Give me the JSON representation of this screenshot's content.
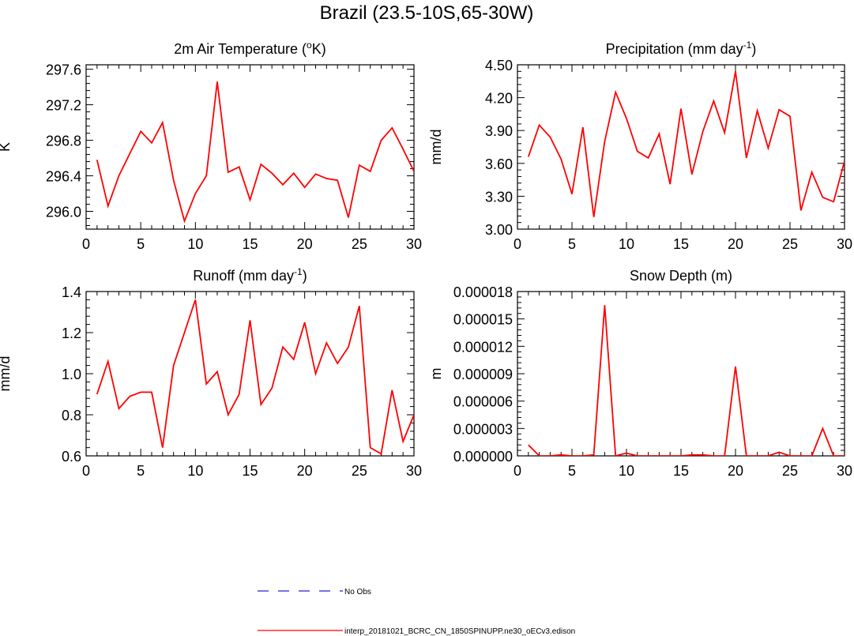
{
  "page_title": "Brazil (23.5-10S,65-30W)",
  "colors": {
    "model_line": "#ff0000",
    "obs_line": "#2222dd",
    "axis": "#000000"
  },
  "legend": {
    "entries": [
      {
        "label": "No Obs",
        "style": "dashed",
        "color": "#2222dd"
      },
      {
        "label": "interp_20181021_BCRC_CN_1850SPINUPP.ne30_oECv3.edison",
        "style": "solid",
        "color": "#ff0000"
      }
    ]
  },
  "chart_data": [
    {
      "id": "temp",
      "type": "line",
      "title": "2m Air Temperature (",
      "title_sup": "o",
      "title_tail": "K)",
      "ylabel": "K",
      "xlim": [
        0,
        30
      ],
      "ylim": [
        295.8,
        297.65
      ],
      "xticks": [
        0,
        5,
        10,
        15,
        20,
        25,
        30
      ],
      "yticks": [
        296.0,
        296.4,
        296.8,
        297.2,
        297.6
      ],
      "ytick_labels": [
        "296.0",
        "296.4",
        "296.8",
        "297.2",
        "297.6"
      ],
      "x": [
        1,
        2,
        3,
        4,
        5,
        6,
        7,
        8,
        9,
        10,
        11,
        12,
        13,
        14,
        15,
        16,
        17,
        18,
        19,
        20,
        21,
        22,
        23,
        24,
        25,
        26,
        27,
        28,
        29,
        30
      ],
      "values": [
        296.58,
        296.06,
        296.4,
        296.65,
        296.9,
        296.77,
        297.0,
        296.35,
        295.89,
        296.2,
        296.4,
        297.46,
        296.44,
        296.5,
        296.13,
        296.53,
        296.43,
        296.3,
        296.43,
        296.27,
        296.42,
        296.37,
        296.35,
        295.93,
        296.52,
        296.45,
        296.8,
        296.94,
        296.7,
        296.45
      ]
    },
    {
      "id": "precip",
      "type": "line",
      "title": "Precipitation (mm day",
      "title_sup": "-1",
      "title_tail": ")",
      "ylabel": "mm/d",
      "xlim": [
        0,
        30
      ],
      "ylim": [
        3.0,
        4.5
      ],
      "xticks": [
        0,
        5,
        10,
        15,
        20,
        25,
        30
      ],
      "yticks": [
        3.0,
        3.3,
        3.6,
        3.9,
        4.2,
        4.5
      ],
      "ytick_labels": [
        "3.00",
        "3.30",
        "3.60",
        "3.90",
        "4.20",
        "4.50"
      ],
      "x": [
        1,
        2,
        3,
        4,
        5,
        6,
        7,
        8,
        9,
        10,
        11,
        12,
        13,
        14,
        15,
        16,
        17,
        18,
        19,
        20,
        21,
        22,
        23,
        24,
        25,
        26,
        27,
        28,
        29,
        30
      ],
      "values": [
        3.66,
        3.95,
        3.84,
        3.64,
        3.32,
        3.93,
        3.11,
        3.8,
        4.25,
        4.01,
        3.71,
        3.65,
        3.87,
        3.41,
        4.1,
        3.5,
        3.89,
        4.17,
        3.88,
        4.44,
        3.65,
        4.08,
        3.74,
        4.09,
        4.03,
        3.17,
        3.52,
        3.29,
        3.25,
        3.62
      ]
    },
    {
      "id": "runoff",
      "type": "line",
      "title": "Runoff (mm day",
      "title_sup": "-1",
      "title_tail": ")",
      "ylabel": "mm/d",
      "xlim": [
        0,
        30
      ],
      "ylim": [
        0.6,
        1.4
      ],
      "xticks": [
        0,
        5,
        10,
        15,
        20,
        25,
        30
      ],
      "yticks": [
        0.6,
        0.8,
        1.0,
        1.2,
        1.4
      ],
      "ytick_labels": [
        "0.6",
        "0.8",
        "1.0",
        "1.2",
        "1.4"
      ],
      "x": [
        1,
        2,
        3,
        4,
        5,
        6,
        7,
        8,
        9,
        10,
        11,
        12,
        13,
        14,
        15,
        16,
        17,
        18,
        19,
        20,
        21,
        22,
        23,
        24,
        25,
        26,
        27,
        28,
        29,
        30
      ],
      "values": [
        0.9,
        1.06,
        0.83,
        0.89,
        0.91,
        0.91,
        0.64,
        1.04,
        1.2,
        1.36,
        0.95,
        1.01,
        0.8,
        0.9,
        1.26,
        0.85,
        0.93,
        1.13,
        1.07,
        1.25,
        1.0,
        1.15,
        1.05,
        1.13,
        1.33,
        0.64,
        0.61,
        0.92,
        0.67,
        0.8
      ]
    },
    {
      "id": "snow",
      "type": "line",
      "title": "Snow Depth (m)",
      "title_sup": "",
      "title_tail": "",
      "ylabel": "m",
      "xlim": [
        0,
        30
      ],
      "ylim": [
        0.0,
        1.8e-05
      ],
      "xticks": [
        0,
        5,
        10,
        15,
        20,
        25,
        30
      ],
      "yticks": [
        0.0,
        3e-06,
        6e-06,
        9e-06,
        1.2e-05,
        1.5e-05,
        1.8e-05
      ],
      "ytick_labels": [
        "0.000000",
        "0.000003",
        "0.000006",
        "0.000009",
        "0.000012",
        "0.000015",
        "0.000018"
      ],
      "x": [
        1,
        2,
        3,
        4,
        5,
        6,
        7,
        8,
        9,
        10,
        11,
        12,
        13,
        14,
        15,
        16,
        17,
        18,
        19,
        20,
        21,
        22,
        23,
        24,
        25,
        26,
        27,
        28,
        29,
        30
      ],
      "values": [
        1.2e-06,
        0.0,
        0.0,
        1e-07,
        0.0,
        0.0,
        1e-07,
        1.65e-05,
        0.0,
        3e-07,
        0.0,
        0.0,
        0.0,
        0.0,
        0.0,
        1e-07,
        1e-07,
        0.0,
        0.0,
        9.8e-06,
        0.0,
        0.0,
        0.0,
        4e-07,
        0.0,
        0.0,
        0.0,
        3e-06,
        0.0,
        0.0
      ]
    }
  ]
}
